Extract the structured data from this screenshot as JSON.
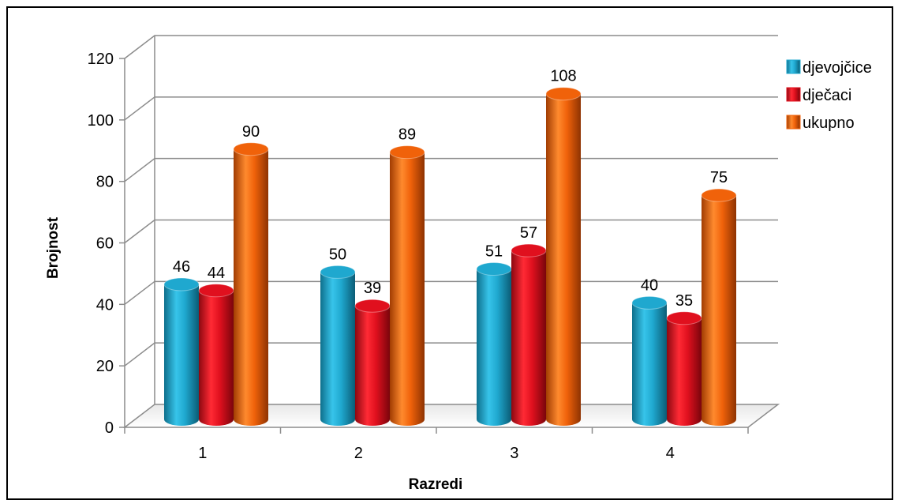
{
  "chart_data": {
    "type": "bar",
    "title": "",
    "xlabel": "Razredi",
    "ylabel": "Brojnost",
    "categories": [
      "1",
      "2",
      "3",
      "4"
    ],
    "ylim": [
      0,
      120
    ],
    "yticks": [
      "0",
      "20",
      "40",
      "60",
      "80",
      "100",
      "120"
    ],
    "grid": true,
    "legend_position": "right",
    "series": [
      {
        "name": "djevojčice",
        "values": [
          46,
          50,
          51,
          40
        ],
        "color": "#1fa8cf"
      },
      {
        "name": "dječaci",
        "values": [
          44,
          39,
          57,
          35
        ],
        "color": "#e0101e"
      },
      {
        "name": "ukupno",
        "values": [
          90,
          89,
          108,
          75
        ],
        "color": "#f0620a"
      }
    ],
    "data_labels": [
      [
        "46",
        "50",
        "51",
        "40"
      ],
      [
        "44",
        "39",
        "57",
        "35"
      ],
      [
        "90",
        "89",
        "108",
        "75"
      ]
    ]
  }
}
